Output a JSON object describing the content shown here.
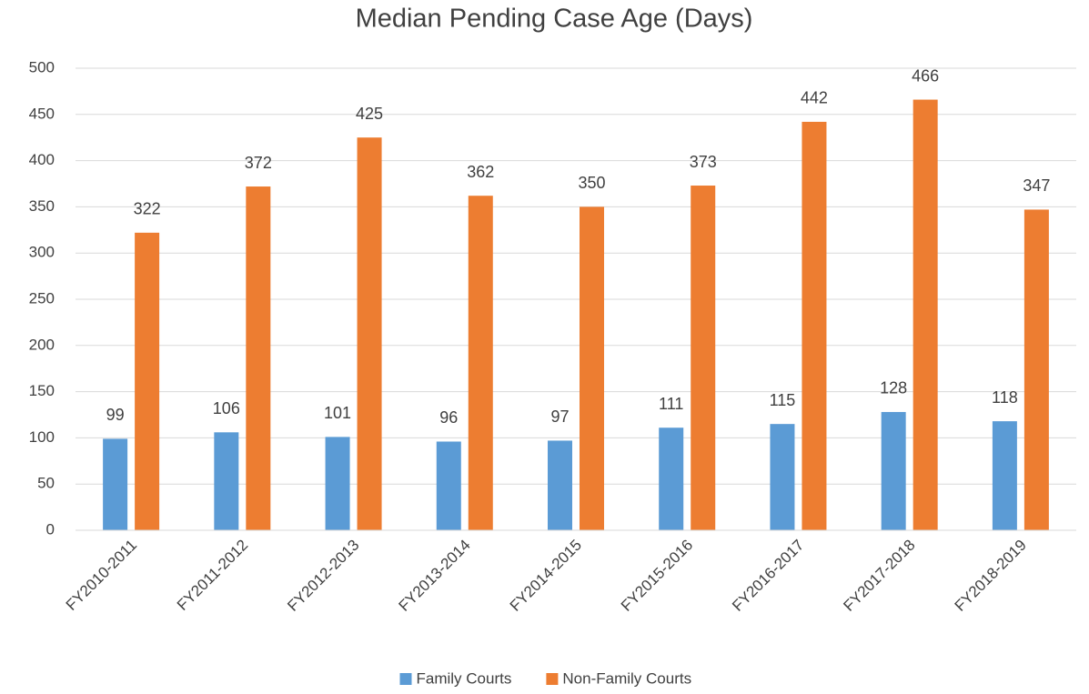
{
  "chart_data": {
    "type": "bar",
    "title": "Median Pending Case Age (Days)",
    "categories": [
      "FY2010-2011",
      "FY2011-2012",
      "FY2012-2013",
      "FY2013-2014",
      "FY2014-2015",
      "FY2015-2016",
      "FY2016-2017",
      "FY2017-2018",
      "FY2018-2019"
    ],
    "series": [
      {
        "name": "Family Courts",
        "color": "#5b9bd5",
        "values": [
          99,
          106,
          101,
          96,
          97,
          111,
          115,
          128,
          118
        ]
      },
      {
        "name": "Non-Family Courts",
        "color": "#ed7d31",
        "values": [
          322,
          372,
          425,
          362,
          350,
          373,
          442,
          466,
          347
        ]
      }
    ],
    "ylim": [
      0,
      500
    ],
    "yticks": [
      0,
      50,
      100,
      150,
      200,
      250,
      300,
      350,
      400,
      450,
      500
    ],
    "grid": true,
    "legend": "bottom"
  }
}
